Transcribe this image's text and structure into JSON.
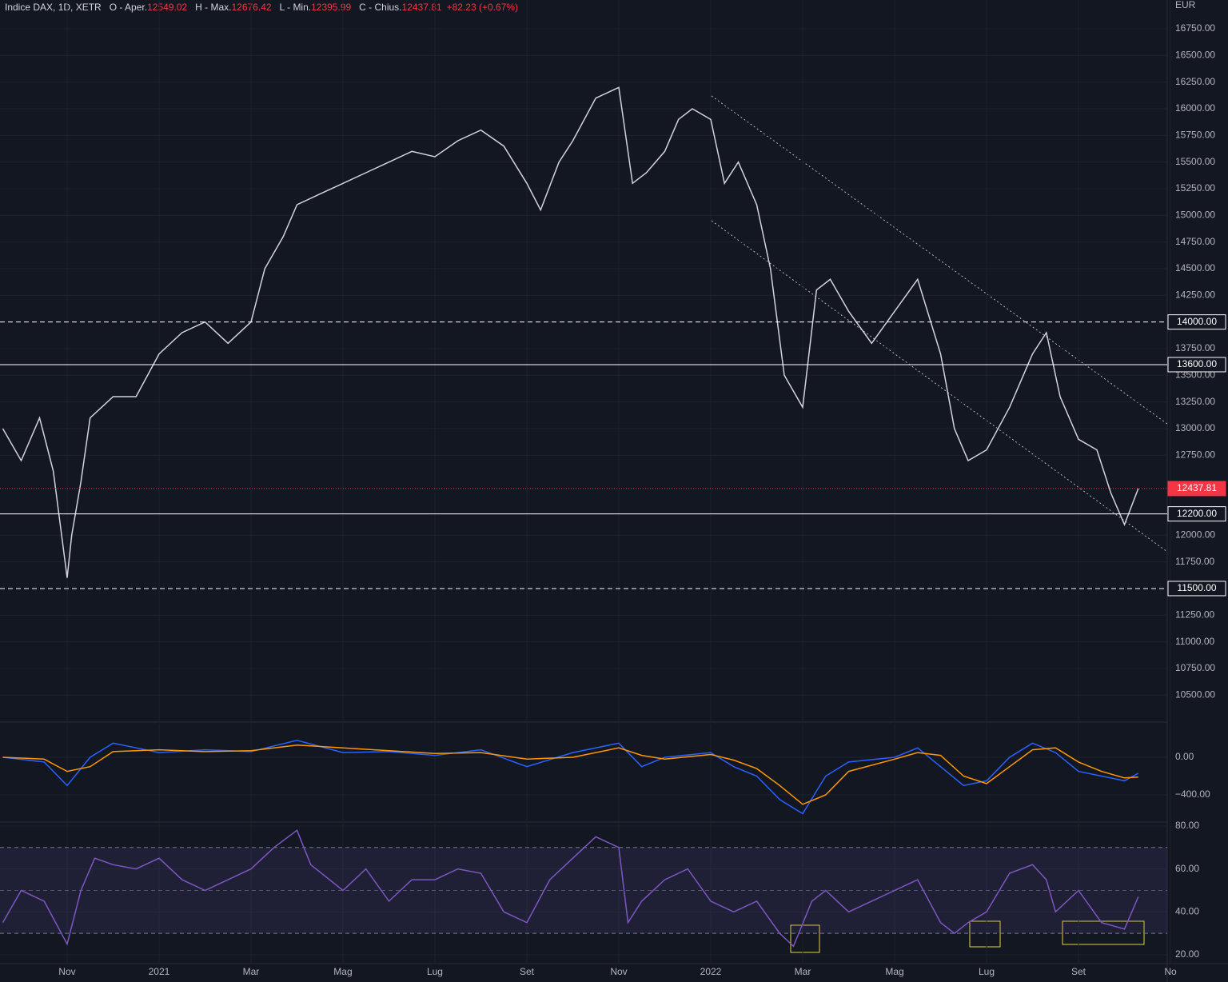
{
  "chart_data": [
    {
      "type": "line",
      "title": "Indice DAX, 1D, XETR",
      "ohlc": [
        {
          "label": "O - Aper.",
          "value": "12549.02"
        },
        {
          "label": "H - Max.",
          "value": "12676.42"
        },
        {
          "label": "L - Min.",
          "value": "12395.99"
        },
        {
          "label": "C - Chius.",
          "value": "12437.81"
        }
      ],
      "change": "+82.23 (+0.67%)",
      "unit": "EUR",
      "x": [
        -1.4,
        -1.0,
        -0.6,
        -0.3,
        0,
        0.1,
        0.3,
        0.5,
        1.0,
        1.5,
        2.0,
        2.5,
        3.0,
        3.5,
        4.0,
        4.3,
        4.7,
        5.0,
        5.5,
        6.0,
        6.5,
        7.0,
        7.5,
        8.0,
        8.5,
        9.0,
        9.5,
        10.0,
        10.3,
        10.7,
        11.0,
        11.5,
        12.0,
        12.3,
        12.6,
        13.0,
        13.3,
        13.6,
        14.0,
        14.3,
        14.6,
        15.0,
        15.3,
        15.6,
        16.0,
        16.3,
        16.6,
        17.0,
        17.5,
        18.0,
        18.5,
        19.0,
        19.3,
        19.6,
        20.0,
        20.5,
        21.0,
        21.3,
        21.6,
        22.0,
        22.4,
        22.7,
        23.0,
        23.3
      ],
      "series": [
        {
          "color": "#d1d4dc",
          "values": [
            13000,
            12700,
            13100,
            12600,
            11600,
            12000,
            12500,
            13100,
            13300,
            13300,
            13700,
            13900,
            14000,
            13800,
            14000,
            14500,
            14800,
            15100,
            15200,
            15300,
            15400,
            15500,
            15600,
            15550,
            15700,
            15800,
            15650,
            15300,
            15050,
            15500,
            15700,
            16100,
            16200,
            15300,
            15400,
            15600,
            15900,
            16000,
            15900,
            15300,
            15500,
            15100,
            14500,
            13500,
            13200,
            14300,
            14400,
            14100,
            13800,
            14100,
            14400,
            13700,
            13000,
            12700,
            12800,
            13200,
            13700,
            13900,
            13300,
            12900,
            12800,
            12400,
            12100,
            12437.81
          ]
        }
      ],
      "levels": [
        {
          "value": 14000,
          "label": "14000.00",
          "style": "dashed",
          "color": "#ffffff"
        },
        {
          "value": 13600,
          "label": "13600.00",
          "style": "solid",
          "color": "#ffffff"
        },
        {
          "value": 12437.81,
          "label": "12437.81",
          "style": "dotted",
          "color": "#f23645"
        },
        {
          "value": 12200,
          "label": "12200.00",
          "style": "solid",
          "color": "#ffffff"
        },
        {
          "value": 11500,
          "label": "11500.00",
          "style": "dashed",
          "color": "#ffffff"
        }
      ],
      "xlim": [
        -1.46,
        23.93
      ],
      "xticks": [
        0,
        2,
        4,
        6,
        8,
        10,
        12,
        14,
        16,
        18,
        20,
        22,
        24
      ],
      "ylim": [
        10247,
        17020
      ],
      "yticks": [
        {
          "value": 16750,
          "label": "16750.00"
        },
        {
          "value": 16500,
          "label": "16500.00"
        },
        {
          "value": 16250,
          "label": "16250.00"
        },
        {
          "value": 16000,
          "label": "16000.00"
        },
        {
          "value": 15750,
          "label": "15750.00"
        },
        {
          "value": 15500,
          "label": "15500.00"
        },
        {
          "value": 15250,
          "label": "15250.00"
        },
        {
          "value": 15000,
          "label": "15000.00"
        },
        {
          "value": 14750,
          "label": "14750.00"
        },
        {
          "value": 14500,
          "label": "14500.00"
        },
        {
          "value": 14250,
          "label": "14250.00"
        },
        {
          "value": 13750,
          "label": "13750.00"
        },
        {
          "value": 13500,
          "label": "13500.00"
        },
        {
          "value": 13250,
          "label": "13250.00"
        },
        {
          "value": 13000,
          "label": "13000.00"
        },
        {
          "value": 12750,
          "label": "12750.00"
        },
        {
          "value": 12000,
          "label": "12000.00"
        },
        {
          "value": 11750,
          "label": "11750.00"
        },
        {
          "value": 11250,
          "label": "11250.00"
        },
        {
          "value": 11000,
          "label": "11000.00"
        },
        {
          "value": 10750,
          "label": "10750.00"
        },
        {
          "value": 10500,
          "label": "10500.00"
        }
      ]
    },
    {
      "type": "line",
      "x": [
        -1.4,
        -0.5,
        0,
        0.5,
        1.0,
        2,
        3,
        4,
        5,
        6,
        7,
        8,
        9,
        10,
        11,
        12,
        12.5,
        13,
        14,
        14.5,
        15,
        15.5,
        16,
        16.5,
        17,
        18,
        18.5,
        19,
        19.5,
        20,
        20.5,
        21,
        21.5,
        22,
        22.5,
        23,
        23.3
      ],
      "series": [
        {
          "color": "#2962ff",
          "values": [
            0,
            -50,
            -300,
            0,
            150,
            50,
            80,
            60,
            180,
            50,
            60,
            20,
            80,
            -100,
            50,
            150,
            -100,
            0,
            50,
            -100,
            -200,
            -450,
            -600,
            -200,
            -50,
            0,
            100,
            -100,
            -300,
            -250,
            0,
            150,
            50,
            -150,
            -200,
            -250,
            -170
          ]
        },
        {
          "color": "#ff9800",
          "values": [
            0,
            -20,
            -150,
            -100,
            60,
            80,
            60,
            70,
            130,
            100,
            70,
            40,
            50,
            -20,
            0,
            100,
            20,
            -20,
            30,
            -30,
            -120,
            -300,
            -500,
            -400,
            -150,
            -20,
            50,
            20,
            -200,
            -280,
            -100,
            80,
            100,
            -50,
            -150,
            -220,
            -210
          ]
        }
      ],
      "xlim": [
        -1.46,
        23.93
      ],
      "xticks": [
        0,
        2,
        4,
        6,
        8,
        10,
        12,
        14,
        16,
        18,
        20,
        22,
        24
      ],
      "ylim": [
        -689,
        357
      ],
      "yticks": [
        {
          "value": 0,
          "label": "0.00"
        },
        {
          "value": -400,
          "label": "−400.00"
        }
      ]
    },
    {
      "type": "line",
      "x": [
        -1.4,
        -1,
        -0.5,
        0,
        0.3,
        0.6,
        1,
        1.5,
        2,
        2.5,
        3,
        3.5,
        4,
        4.5,
        5,
        5.3,
        6,
        6.5,
        7,
        7.5,
        8,
        8.5,
        9,
        9.5,
        10,
        10.5,
        11,
        11.5,
        12,
        12.2,
        12.5,
        13,
        13.5,
        14,
        14.5,
        15,
        15.5,
        15.8,
        16.2,
        16.5,
        17,
        17.5,
        18,
        18.5,
        19,
        19.3,
        19.6,
        20,
        20.5,
        21,
        21.3,
        21.5,
        22,
        22.5,
        23,
        23.3
      ],
      "series": [
        {
          "color": "#7e57c2",
          "values": [
            35,
            50,
            45,
            25,
            50,
            65,
            62,
            60,
            65,
            55,
            50,
            55,
            60,
            70,
            78,
            62,
            50,
            60,
            45,
            55,
            55,
            60,
            58,
            40,
            35,
            55,
            65,
            75,
            70,
            35,
            45,
            55,
            60,
            45,
            40,
            45,
            30,
            24,
            45,
            50,
            40,
            45,
            50,
            55,
            35,
            30,
            35,
            40,
            58,
            62,
            55,
            40,
            50,
            35,
            32,
            47
          ]
        }
      ],
      "band": [
        30,
        70
      ],
      "midline": 50,
      "band_color": "#7e57c2",
      "xlim": [
        -1.46,
        23.93
      ],
      "xticks": [
        {
          "value": 0,
          "label": "Nov"
        },
        {
          "value": 2,
          "label": "2021"
        },
        {
          "value": 4,
          "label": "Mar"
        },
        {
          "value": 6,
          "label": "Mag"
        },
        {
          "value": 8,
          "label": "Lug"
        },
        {
          "value": 10,
          "label": "Set"
        },
        {
          "value": 12,
          "label": "Nov"
        },
        {
          "value": 14,
          "label": "2022"
        },
        {
          "value": 16,
          "label": "Mar"
        },
        {
          "value": 18,
          "label": "Mag"
        },
        {
          "value": 20,
          "label": "Lug"
        },
        {
          "value": 22,
          "label": "Set"
        },
        {
          "value": 24,
          "label": "No"
        }
      ],
      "ylim": [
        15.9,
        81.1
      ],
      "yticks": [
        {
          "value": 80,
          "label": "80.00"
        },
        {
          "value": 60,
          "label": "60.00"
        },
        {
          "value": 40,
          "label": "40.00"
        },
        {
          "value": 20,
          "label": "20.00"
        }
      ]
    }
  ]
}
